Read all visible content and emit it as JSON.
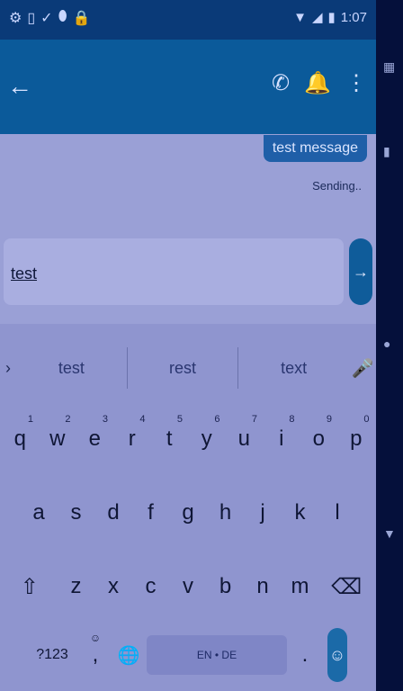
{
  "status": {
    "left_icons": [
      "gear-icon",
      "sim-icon",
      "check-icon",
      "shield-icon",
      "lock-icon"
    ],
    "time": "1:07"
  },
  "conversation": {
    "message_text": "test message",
    "message_status": "Sending.."
  },
  "compose": {
    "value": "test"
  },
  "keyboard": {
    "suggestions": [
      "test",
      "rest",
      "text"
    ],
    "row1": [
      {
        "k": "q",
        "n": "1"
      },
      {
        "k": "w",
        "n": "2"
      },
      {
        "k": "e",
        "n": "3"
      },
      {
        "k": "r",
        "n": "4"
      },
      {
        "k": "t",
        "n": "5"
      },
      {
        "k": "y",
        "n": "6"
      },
      {
        "k": "u",
        "n": "7"
      },
      {
        "k": "i",
        "n": "8"
      },
      {
        "k": "o",
        "n": "9"
      },
      {
        "k": "p",
        "n": "0"
      }
    ],
    "row2": [
      "a",
      "s",
      "d",
      "f",
      "g",
      "h",
      "j",
      "k",
      "l"
    ],
    "row3": [
      "z",
      "x",
      "c",
      "v",
      "b",
      "n",
      "m"
    ],
    "symbols_label": "?123",
    "comma_label": ",",
    "period_label": ".",
    "space_label": "EN • DE"
  }
}
